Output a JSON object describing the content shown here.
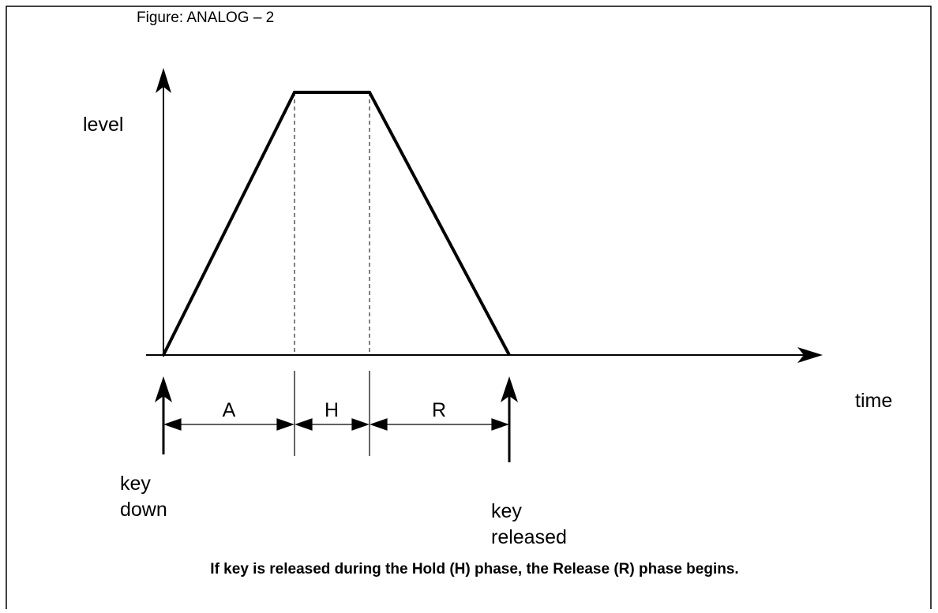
{
  "figure_label": "Figure: ANALOG – 2",
  "axes": {
    "y_label": "level",
    "x_label": "time"
  },
  "phases": [
    {
      "label": "A"
    },
    {
      "label": "H"
    },
    {
      "label": "R"
    }
  ],
  "events": [
    {
      "lines": [
        "key",
        "down"
      ]
    },
    {
      "lines": [
        "key",
        "released"
      ]
    }
  ],
  "caption": "If key is released during the Hold (H) phase, the Release (R) phase begins."
}
